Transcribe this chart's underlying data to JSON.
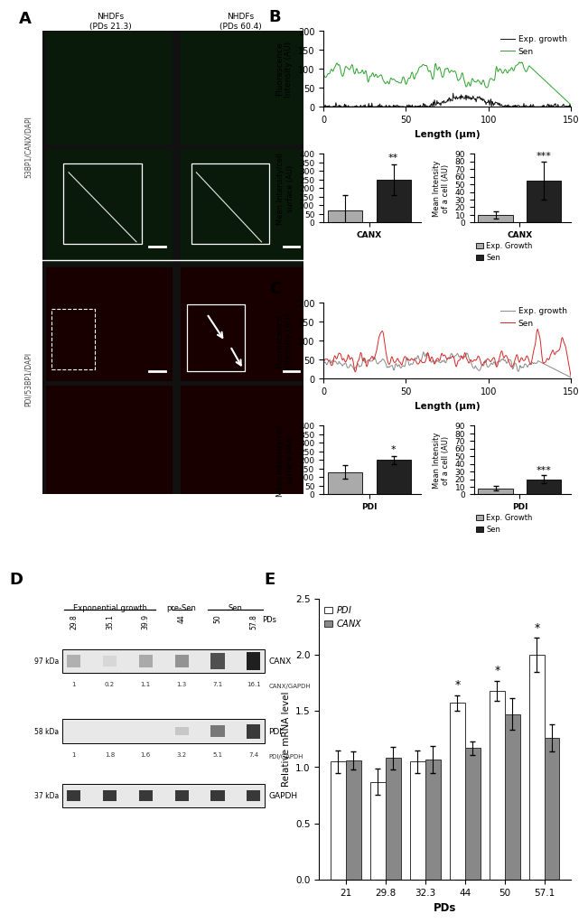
{
  "panel_B_line": {
    "ylabel": "Fluorescence\nIntensity (AU)",
    "xlabel": "Length (μm)",
    "ylim": [
      0,
      200
    ],
    "xlim": [
      0,
      150
    ],
    "exp_color": "#111111",
    "sen_color": "#2ca02c",
    "exp_label": "Exp. growth",
    "sen_label": "Sen"
  },
  "panel_B_bars": {
    "bar1_eg": 70,
    "bar1_sen": 250,
    "bar1_eg_err": 90,
    "bar1_sen_err": 90,
    "bar2_eg": 10,
    "bar2_sen": 55,
    "bar2_eg_err": 5,
    "bar2_sen_err": 25,
    "significance1": "**",
    "significance2": "***",
    "ylabel1": "Mean Intensity/cell\nsurface (AU)",
    "ylabel2": "Mean Intensity\nof a cell (AU)",
    "xlabel1": "CANX",
    "xlabel2": "CANX",
    "ylim1": [
      0,
      400
    ],
    "ylim2": [
      0,
      90
    ],
    "yticks1": [
      0,
      50,
      100,
      150,
      200,
      250,
      300,
      350,
      400
    ],
    "yticks2": [
      0,
      10,
      20,
      30,
      40,
      50,
      60,
      70,
      80,
      90
    ],
    "eg_color": "#aaaaaa",
    "sen_color": "#222222"
  },
  "panel_C_line": {
    "ylabel": "Fluorescence\nIntensity (AU)",
    "xlabel": "Length (μm)",
    "ylim": [
      0,
      200
    ],
    "xlim": [
      0,
      150
    ],
    "exp_color": "#888888",
    "sen_color": "#d62728",
    "exp_label": "Exp. growth",
    "sen_label": "Sen"
  },
  "panel_C_bars": {
    "bar1_eg": 130,
    "bar1_sen": 200,
    "bar1_eg_err": 40,
    "bar1_sen_err": 25,
    "bar2_eg": 8,
    "bar2_sen": 20,
    "bar2_eg_err": 3,
    "bar2_sen_err": 5,
    "significance1": "*",
    "significance2": "***",
    "ylabel1": "Mean Intensity/cell\nsurface (AU)",
    "ylabel2": "Mean Intensity\nof a cell (AU)",
    "xlabel1": "PDI",
    "xlabel2": "PDI",
    "ylim1": [
      0,
      400
    ],
    "ylim2": [
      0,
      90
    ],
    "yticks1": [
      0,
      50,
      100,
      150,
      200,
      250,
      300,
      350,
      400
    ],
    "yticks2": [
      0,
      10,
      20,
      30,
      40,
      50,
      60,
      70,
      80,
      90
    ],
    "eg_color": "#aaaaaa",
    "sen_color": "#222222"
  },
  "panel_D": {
    "pds": [
      "29.8",
      "35.1",
      "39.9",
      "44",
      "50",
      "57.8"
    ],
    "canx_gapdh": [
      "1",
      "0.2",
      "1.1",
      "1.3",
      "7.1",
      "16.1"
    ],
    "pdi_gapdh": [
      "1",
      "1.8",
      "1.6",
      "3.2",
      "5.1",
      "7.4"
    ],
    "kda_canx": "97 kDa",
    "kda_pdi": "58 kDa",
    "kda_gapdh": "37 kDa",
    "canx_intensities": [
      0.35,
      0.18,
      0.38,
      0.48,
      0.78,
      1.0
    ],
    "pdi_intensities": [
      0.0,
      0.0,
      0.0,
      0.25,
      0.6,
      0.88
    ],
    "gapdh_intensities": [
      0.7,
      0.7,
      0.7,
      0.7,
      0.7,
      0.7
    ]
  },
  "panel_E": {
    "pds": [
      "21",
      "29.8",
      "32.3",
      "44",
      "50",
      "57.1"
    ],
    "pdi_values": [
      1.05,
      0.87,
      1.05,
      1.57,
      1.68,
      2.0
    ],
    "canx_values": [
      1.06,
      1.08,
      1.07,
      1.17,
      1.47,
      1.26
    ],
    "pdi_errors": [
      0.1,
      0.12,
      0.1,
      0.07,
      0.09,
      0.15
    ],
    "canx_errors": [
      0.08,
      0.1,
      0.12,
      0.06,
      0.14,
      0.12
    ],
    "ylabel": "Relative mRNA level",
    "xlabel": "PDs",
    "ylim": [
      0,
      2.5
    ],
    "yticks": [
      0,
      0.5,
      1.0,
      1.5,
      2.0,
      2.5
    ],
    "pdi_color": "#ffffff",
    "canx_color": "#888888",
    "bar_edge": "#333333",
    "sig_pdi_idx": [
      3,
      4,
      5
    ],
    "sig_canx_idx": []
  },
  "panel_A": {
    "nhdf1_label": "NHDFs\n(PDs 21.3)",
    "nhdf2_label": "NHDFs\n(PDs 60.4)",
    "channel1_label": "53BP1/CANX/DAPI",
    "channel2_label": "PDI/53BP1/DAPI",
    "green_bg": "#0a1a0a",
    "green_cell": "#1a4a10",
    "red_bg": "#180000",
    "red_cell": "#3a0808"
  },
  "layout": {
    "fig_width": 6.5,
    "fig_height": 9.94,
    "dpi": 100
  }
}
